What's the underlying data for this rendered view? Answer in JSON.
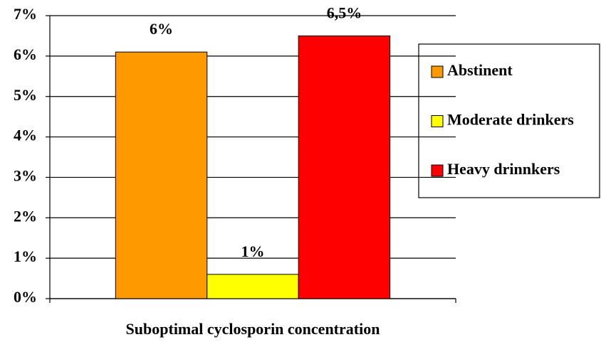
{
  "chart_data": {
    "type": "bar",
    "categories": [
      "Suboptimal cyclosporin concentration"
    ],
    "series": [
      {
        "name": "Abstinent",
        "color": "#ff9900",
        "values": [
          6.1
        ],
        "value_labels": [
          "6%"
        ]
      },
      {
        "name": "Moderate drinkers",
        "color": "#ffff00",
        "values": [
          0.6
        ],
        "value_labels": [
          "1%"
        ]
      },
      {
        "name": "Heavy drinnkers",
        "color": "#ff0000",
        "values": [
          6.5
        ],
        "value_labels": [
          "6,5%"
        ]
      }
    ],
    "ylim": [
      0,
      7
    ],
    "yticks": [
      {
        "value": 0,
        "label": "0%"
      },
      {
        "value": 1,
        "label": "1%"
      },
      {
        "value": 2,
        "label": "2%"
      },
      {
        "value": 3,
        "label": "3%"
      },
      {
        "value": 4,
        "label": "4%"
      },
      {
        "value": 5,
        "label": "5%"
      },
      {
        "value": 6,
        "label": "6%"
      },
      {
        "value": 7,
        "label": "7%"
      }
    ],
    "grid": true,
    "legend": "right"
  }
}
